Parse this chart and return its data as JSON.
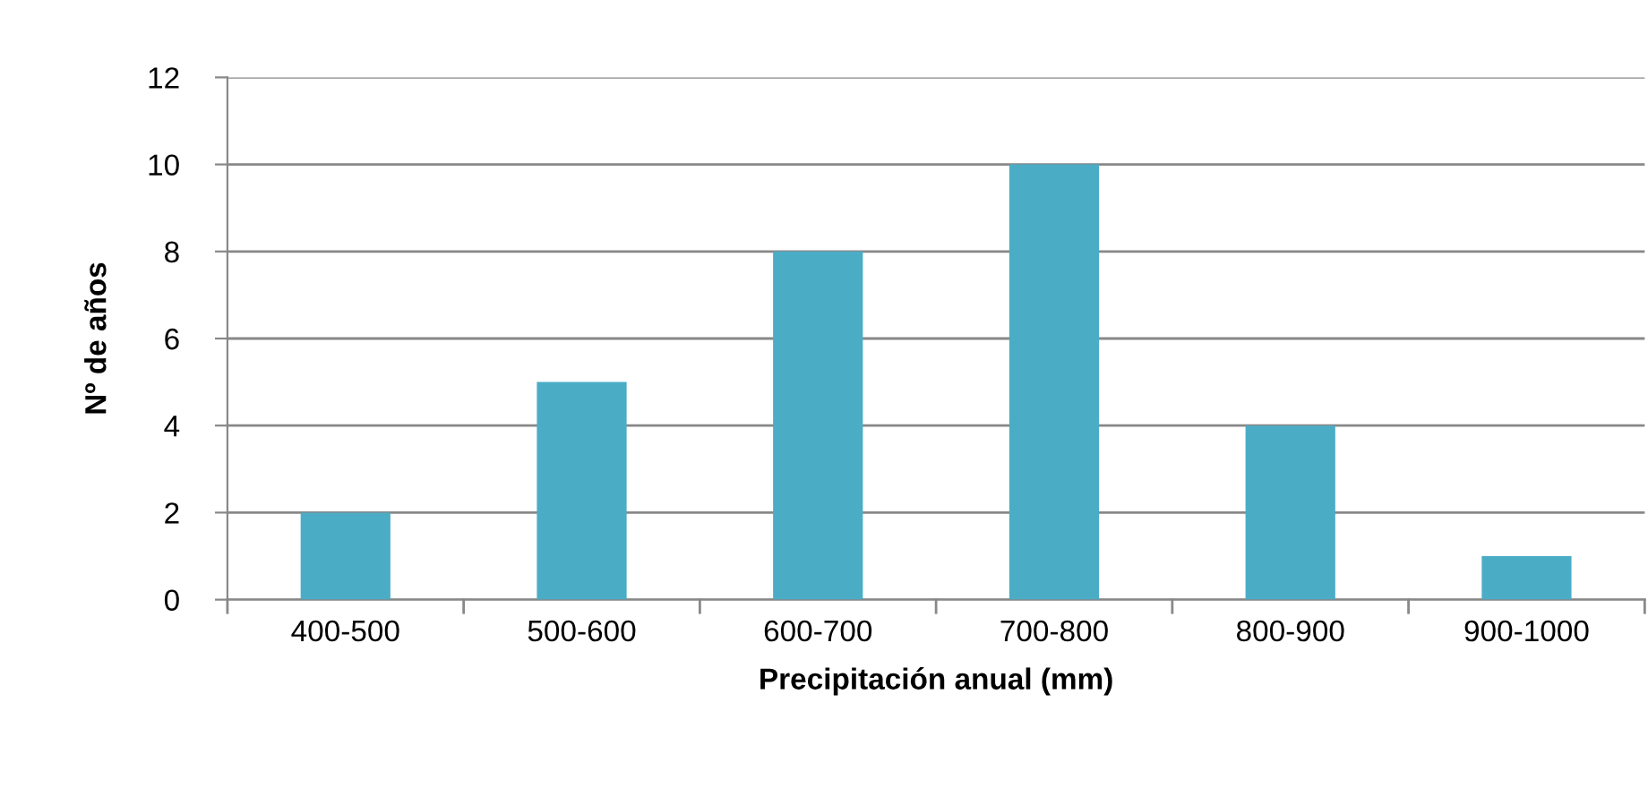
{
  "chart_data": {
    "type": "bar",
    "xlabel": "Precipitación anual (mm)",
    "ylabel": "Nº de años",
    "categories": [
      "400-500",
      "500-600",
      "600-700",
      "700-800",
      "800-900",
      "900-1000"
    ],
    "values": [
      2,
      5,
      8,
      10,
      4,
      1
    ],
    "color": "#4bacc6",
    "ylim": [
      0,
      12
    ],
    "yticks": [
      0,
      2,
      4,
      6,
      8,
      10,
      12
    ],
    "grid": "y"
  }
}
